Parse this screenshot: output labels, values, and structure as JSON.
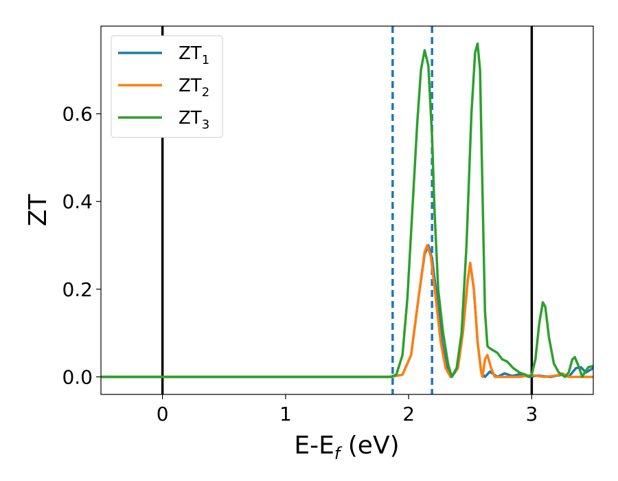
{
  "chart_data": {
    "type": "line",
    "xlabel": "E-E",
    "xlabel_sub": "f",
    "xlabel_unit": " (eV)",
    "ylabel": "ZT",
    "xlim": [
      -0.5,
      3.5
    ],
    "ylim": [
      -0.04,
      0.8
    ],
    "xticks": [
      0,
      1,
      2,
      3
    ],
    "xtick_labels": [
      "0",
      "1",
      "2",
      "3"
    ],
    "yticks": [
      0.0,
      0.2,
      0.4,
      0.6
    ],
    "ytick_labels": [
      "0.0",
      "0.2",
      "0.4",
      "0.6"
    ],
    "grid": false,
    "legend_position": "top-left",
    "vlines": [
      {
        "x": 0.0,
        "style": "solid",
        "color": "#000000"
      },
      {
        "x": 3.0,
        "style": "solid",
        "color": "#000000"
      },
      {
        "x": 1.87,
        "style": "dashed",
        "color": "#1f77b4"
      },
      {
        "x": 2.19,
        "style": "dashed",
        "color": "#1f77b4"
      }
    ],
    "series": [
      {
        "name": "ZT",
        "sub": "1",
        "color": "#1f77b4",
        "points": [
          [
            -0.5,
            0
          ],
          [
            1.85,
            0
          ],
          [
            1.95,
            0.005
          ],
          [
            2.02,
            0.05
          ],
          [
            2.08,
            0.18
          ],
          [
            2.13,
            0.28
          ],
          [
            2.16,
            0.3
          ],
          [
            2.19,
            0.27
          ],
          [
            2.23,
            0.18
          ],
          [
            2.27,
            0.08
          ],
          [
            2.31,
            0.02
          ],
          [
            2.35,
            0.0
          ],
          [
            2.4,
            0.02
          ],
          [
            2.44,
            0.1
          ],
          [
            2.48,
            0.22
          ],
          [
            2.5,
            0.26
          ],
          [
            2.53,
            0.2
          ],
          [
            2.56,
            0.08
          ],
          [
            2.59,
            0.01
          ],
          [
            2.62,
            0.0
          ],
          [
            2.66,
            0.012
          ],
          [
            2.72,
            0.0
          ],
          [
            2.78,
            0.008
          ],
          [
            2.84,
            0.002
          ],
          [
            2.9,
            0.006
          ],
          [
            2.98,
            0.0
          ],
          [
            3.05,
            0.003
          ],
          [
            3.15,
            0.0
          ],
          [
            3.25,
            0.005
          ],
          [
            3.3,
            0.0
          ],
          [
            3.36,
            0.02
          ],
          [
            3.4,
            0.022
          ],
          [
            3.44,
            0.01
          ],
          [
            3.5,
            0.02
          ]
        ]
      },
      {
        "name": "ZT",
        "sub": "2",
        "color": "#ff7f0e",
        "points": [
          [
            -0.5,
            0
          ],
          [
            1.85,
            0
          ],
          [
            1.95,
            0.005
          ],
          [
            2.02,
            0.05
          ],
          [
            2.08,
            0.18
          ],
          [
            2.13,
            0.285
          ],
          [
            2.15,
            0.3
          ],
          [
            2.18,
            0.275
          ],
          [
            2.22,
            0.18
          ],
          [
            2.26,
            0.08
          ],
          [
            2.3,
            0.02
          ],
          [
            2.34,
            0.0
          ],
          [
            2.4,
            0.02
          ],
          [
            2.44,
            0.1
          ],
          [
            2.48,
            0.22
          ],
          [
            2.5,
            0.26
          ],
          [
            2.53,
            0.2
          ],
          [
            2.56,
            0.08
          ],
          [
            2.59,
            0.01
          ],
          [
            2.6,
            0.0
          ],
          [
            2.62,
            0.04
          ],
          [
            2.64,
            0.05
          ],
          [
            2.67,
            0.02
          ],
          [
            2.7,
            0.0
          ],
          [
            2.9,
            0.0
          ],
          [
            3.0,
            0.004
          ],
          [
            3.1,
            0.0
          ],
          [
            3.2,
            0.003
          ],
          [
            3.25,
            0.008
          ],
          [
            3.3,
            0.0
          ],
          [
            3.5,
            0.0
          ]
        ]
      },
      {
        "name": "ZT",
        "sub": "3",
        "color": "#2ca02c",
        "points": [
          [
            -0.5,
            0
          ],
          [
            1.85,
            0
          ],
          [
            1.9,
            0.005
          ],
          [
            1.95,
            0.05
          ],
          [
            1.99,
            0.18
          ],
          [
            2.03,
            0.38
          ],
          [
            2.07,
            0.58
          ],
          [
            2.1,
            0.7
          ],
          [
            2.13,
            0.745
          ],
          [
            2.16,
            0.71
          ],
          [
            2.19,
            0.55
          ],
          [
            2.21,
            0.38
          ],
          [
            2.24,
            0.2
          ],
          [
            2.28,
            0.1
          ],
          [
            2.32,
            0.03
          ],
          [
            2.35,
            0.0
          ],
          [
            2.39,
            0.02
          ],
          [
            2.43,
            0.1
          ],
          [
            2.47,
            0.3
          ],
          [
            2.51,
            0.6
          ],
          [
            2.54,
            0.74
          ],
          [
            2.56,
            0.76
          ],
          [
            2.58,
            0.7
          ],
          [
            2.6,
            0.42
          ],
          [
            2.62,
            0.15
          ],
          [
            2.64,
            0.07
          ],
          [
            2.66,
            0.065
          ],
          [
            2.69,
            0.06
          ],
          [
            2.72,
            0.055
          ],
          [
            2.76,
            0.04
          ],
          [
            2.8,
            0.035
          ],
          [
            2.85,
            0.02
          ],
          [
            2.9,
            0.01
          ],
          [
            2.95,
            0.005
          ],
          [
            2.98,
            0.0
          ],
          [
            3.0,
            0.005
          ],
          [
            3.03,
            0.04
          ],
          [
            3.06,
            0.12
          ],
          [
            3.09,
            0.17
          ],
          [
            3.11,
            0.16
          ],
          [
            3.14,
            0.09
          ],
          [
            3.18,
            0.03
          ],
          [
            3.22,
            0.01
          ],
          [
            3.27,
            0.0
          ],
          [
            3.3,
            0.01
          ],
          [
            3.33,
            0.04
          ],
          [
            3.35,
            0.045
          ],
          [
            3.38,
            0.025
          ],
          [
            3.41,
            0.0
          ],
          [
            3.43,
            0.01
          ],
          [
            3.46,
            0.022
          ],
          [
            3.5,
            0.025
          ]
        ]
      }
    ]
  }
}
